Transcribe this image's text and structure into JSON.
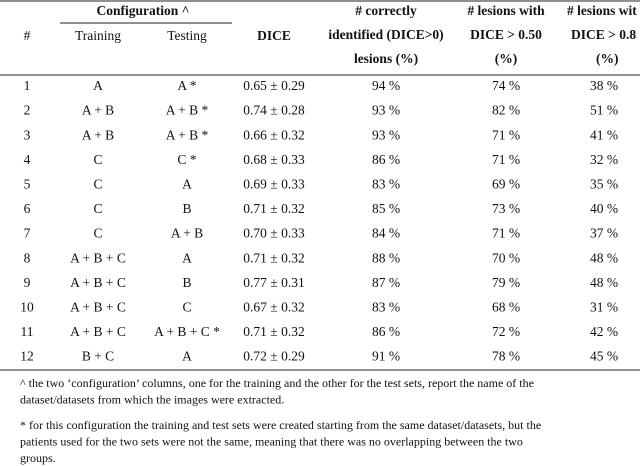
{
  "table": {
    "header": {
      "group": "Configuration ^",
      "columns": [
        {
          "lines": [
            "#"
          ]
        },
        {
          "lines": [
            "Training"
          ]
        },
        {
          "lines": [
            "Testing"
          ]
        },
        {
          "lines": [
            "DICE"
          ]
        },
        {
          "lines": [
            "# correctly",
            "identified (DICE>0)",
            "lesions (%)"
          ]
        },
        {
          "lines": [
            "# lesions with",
            "DICE > 0.50",
            "(%)"
          ]
        },
        {
          "lines": [
            "# lesions wit",
            "DICE > 0.8",
            "(%)"
          ]
        }
      ]
    },
    "rows": [
      [
        "1",
        "A",
        "A *",
        "0.65 ± 0.29",
        "94 %",
        "74 %",
        "38 %"
      ],
      [
        "2",
        "A + B",
        "A + B *",
        "0.74 ± 0.28",
        "93 %",
        "82 %",
        "51 %"
      ],
      [
        "3",
        "A + B",
        "A + B *",
        "0.66 ± 0.32",
        "93 %",
        "71 %",
        "41 %"
      ],
      [
        "4",
        "C",
        "C *",
        "0.68 ± 0.33",
        "86 %",
        "71 %",
        "32 %"
      ],
      [
        "5",
        "C",
        "A",
        "0.69 ± 0.33",
        "83 %",
        "69 %",
        "35 %"
      ],
      [
        "6",
        "C",
        "B",
        "0.71 ± 0.32",
        "85 %",
        "73 %",
        "40 %"
      ],
      [
        "7",
        "C",
        "A + B",
        "0.70 ± 0.33",
        "84 %",
        "71 %",
        "37 %"
      ],
      [
        "8",
        "A + B + C",
        "A",
        "0.71 ± 0.32",
        "88 %",
        "70 %",
        "48 %"
      ],
      [
        "9",
        "A + B + C",
        "B",
        "0.77 ± 0.31",
        "87 %",
        "79 %",
        "48 %"
      ],
      [
        "10",
        "A + B + C",
        "C",
        "0.67 ± 0.32",
        "83 %",
        "68 %",
        "31 %"
      ],
      [
        "11",
        "A + B + C",
        "A + B + C *",
        "0.71 ± 0.32",
        "86 %",
        "72 %",
        "42 %"
      ],
      [
        "12",
        "B + C",
        "A",
        "0.72 ± 0.29",
        "91 %",
        "78 %",
        "45 %"
      ]
    ]
  },
  "footnotes": [
    {
      "lines": [
        "^ the two ‘configuration’ columns, one for the training and the other for the test sets, report the name of the",
        "dataset/datasets from which the images were extracted."
      ]
    },
    {
      "lines": [
        "* for this configuration the training and test sets were created starting from the same dataset/datasets, but the",
        "patients used for the two sets were not the same, meaning that there was no overlapping between the two",
        "groups."
      ]
    }
  ]
}
